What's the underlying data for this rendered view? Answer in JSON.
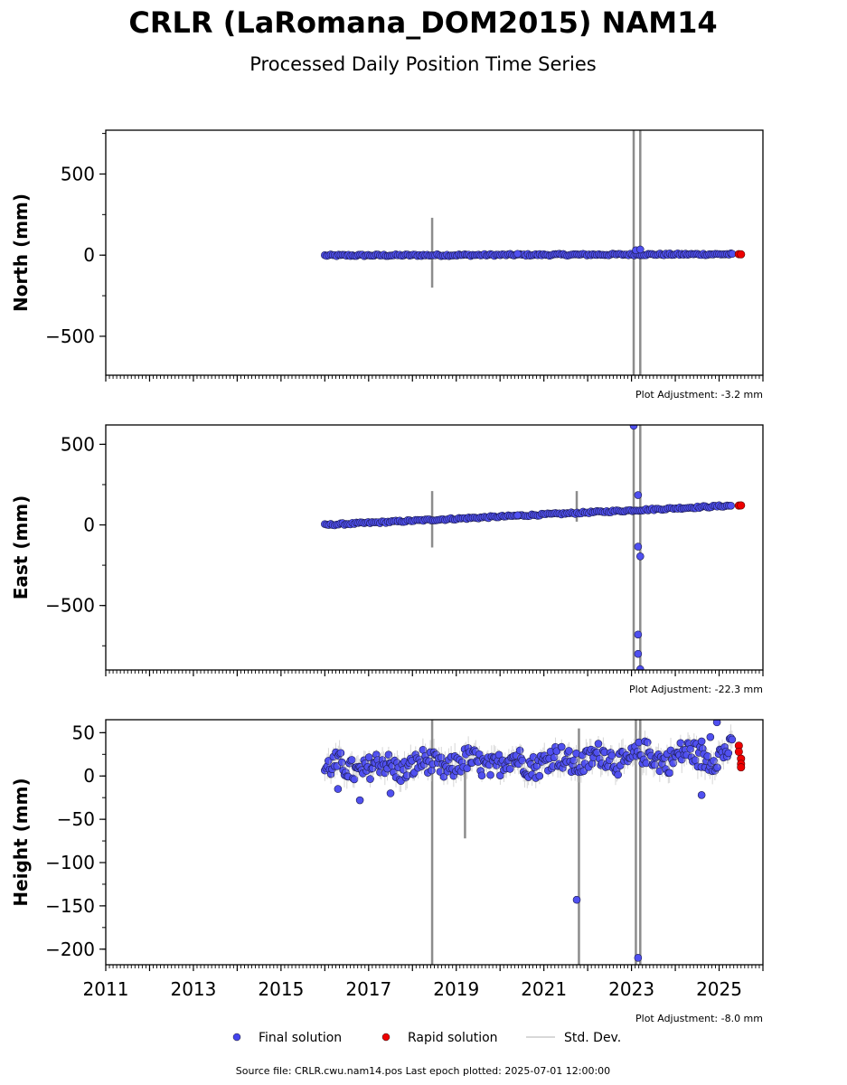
{
  "figure": {
    "title": "CRLR (LaRomana_DOM2015) NAM14",
    "subtitle": "Processed Daily Position Time Series",
    "source_note": "Source file: CRLR.cwu.nam14.pos  Last epoch plotted: 2025-07-01 12:00:00",
    "legend": [
      {
        "label": "Final solution",
        "color": "#4444ee",
        "marker": "circle"
      },
      {
        "label": "Rapid solution",
        "color": "#ee0000",
        "marker": "circle"
      },
      {
        "label": "Std. Dev.",
        "color": "#cccccc",
        "marker": "line"
      }
    ],
    "colors": {
      "final": "#5050f0",
      "rapid": "#ee0000",
      "stddev": "#bbbbbb",
      "marker_edge": "#1a1a4a"
    }
  },
  "chart_data": [
    {
      "type": "scatter",
      "ylabel": "North (mm)",
      "adjustment": "Plot Adjustment: -3.2 mm",
      "xlim": [
        2011,
        2026
      ],
      "ylim": [
        -740,
        770
      ],
      "yticks": [
        -500,
        0,
        500
      ],
      "ytick_labels": [
        "−500",
        "0",
        "500"
      ],
      "final_trend": {
        "start": [
          2016.0,
          -2
        ],
        "end": [
          2025.3,
          6
        ]
      },
      "rapid": [
        [
          2025.45,
          6
        ],
        [
          2025.5,
          5
        ]
      ],
      "outliers": [
        [
          2020.4,
          8
        ],
        [
          2023.1,
          30
        ],
        [
          2023.2,
          35
        ],
        [
          2025.3,
          8
        ]
      ],
      "stddev_bars": [
        [
          2018.45,
          -200,
          230
        ],
        [
          2023.05,
          -740,
          770
        ],
        [
          2023.2,
          -740,
          770
        ]
      ]
    },
    {
      "type": "scatter",
      "ylabel": "East (mm)",
      "adjustment": "Plot Adjustment: -22.3 mm",
      "xlim": [
        2011,
        2026
      ],
      "ylim": [
        -900,
        620
      ],
      "yticks": [
        -500,
        0,
        500
      ],
      "ytick_labels": [
        "−500",
        "0",
        "500"
      ],
      "final_trend": {
        "start": [
          2016.0,
          0
        ],
        "end": [
          2025.3,
          120
        ]
      },
      "rapid": [
        [
          2025.45,
          120
        ],
        [
          2025.5,
          121
        ]
      ],
      "outliers": [
        [
          2023.05,
          615
        ],
        [
          2023.15,
          185
        ],
        [
          2023.15,
          -135
        ],
        [
          2023.2,
          -195
        ],
        [
          2023.15,
          -680
        ],
        [
          2023.15,
          -800
        ],
        [
          2023.2,
          -895
        ],
        [
          2020.4,
          60
        ]
      ],
      "stddev_bars": [
        [
          2018.45,
          -140,
          210
        ],
        [
          2021.75,
          20,
          210
        ],
        [
          2023.05,
          -900,
          620
        ],
        [
          2023.2,
          -900,
          620
        ]
      ]
    },
    {
      "type": "scatter",
      "ylabel": "Height (mm)",
      "adjustment": "Plot Adjustment: -8.0 mm",
      "xlim": [
        2011,
        2026
      ],
      "ylim": [
        -218,
        65
      ],
      "yticks": [
        -200,
        -150,
        -100,
        -50,
        0,
        50
      ],
      "ytick_labels": [
        "−200",
        "−150",
        "−100",
        "−50",
        "0",
        "50"
      ],
      "xticks": [
        2011,
        2013,
        2015,
        2017,
        2019,
        2021,
        2023,
        2025
      ],
      "final_trend": {
        "start": [
          2016.0,
          8
        ],
        "end": [
          2025.3,
          25
        ]
      },
      "rapid": [
        [
          2025.45,
          35
        ],
        [
          2025.45,
          28
        ],
        [
          2025.5,
          20
        ],
        [
          2025.5,
          14
        ],
        [
          2025.5,
          10
        ]
      ],
      "outliers": [
        [
          2021.75,
          -143
        ],
        [
          2023.15,
          -210
        ],
        [
          2024.95,
          62
        ],
        [
          2016.3,
          -15
        ],
        [
          2016.8,
          -28
        ],
        [
          2017.5,
          -20
        ],
        [
          2024.6,
          -22
        ],
        [
          2024.6,
          40
        ],
        [
          2024.8,
          45
        ]
      ],
      "stddev_bars": [
        [
          2018.45,
          -218,
          65
        ],
        [
          2019.2,
          -72,
          5
        ],
        [
          2021.8,
          -218,
          55
        ],
        [
          2023.1,
          -218,
          65
        ],
        [
          2023.2,
          -218,
          65
        ]
      ]
    }
  ]
}
